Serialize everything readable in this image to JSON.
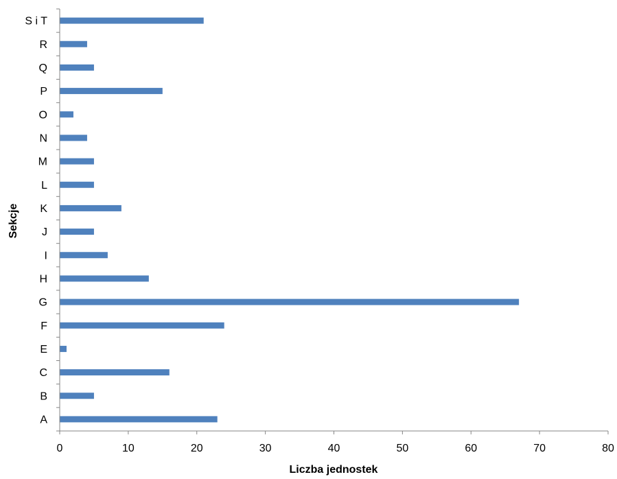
{
  "chart_data": {
    "type": "bar",
    "orientation": "horizontal",
    "categories": [
      "A",
      "B",
      "C",
      "E",
      "F",
      "G",
      "H",
      "I",
      "J",
      "K",
      "L",
      "M",
      "N",
      "O",
      "P",
      "Q",
      "R",
      "S i T"
    ],
    "values": [
      23,
      5,
      16,
      1,
      24,
      67,
      13,
      7,
      5,
      9,
      5,
      5,
      4,
      2,
      15,
      5,
      4,
      21
    ],
    "xlabel": "Liczba jednostek",
    "ylabel": "Sekcje",
    "xlim": [
      0,
      80
    ],
    "xticks": [
      0,
      10,
      20,
      30,
      40,
      50,
      60,
      70,
      80
    ],
    "grid": false,
    "legend": "none",
    "bar_color": "#4F81BD",
    "axis_color": "#868686"
  }
}
